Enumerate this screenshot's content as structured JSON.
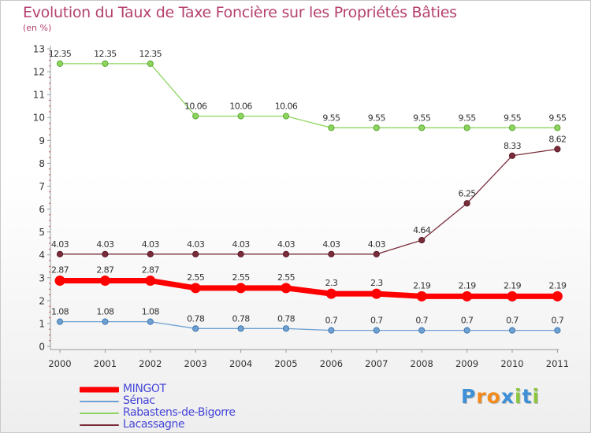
{
  "chart_data": {
    "type": "line",
    "title": "Evolution du Taux de Taxe Foncière sur les Propriétés Bâties",
    "ylabel": "(en %)",
    "x": [
      "2000",
      "2001",
      "2002",
      "2003",
      "2004",
      "2005",
      "2006",
      "2007",
      "2008",
      "2009",
      "2010",
      "2011"
    ],
    "ylim": [
      0,
      13
    ],
    "yticks": [
      0,
      1,
      2,
      3,
      4,
      5,
      6,
      7,
      8,
      9,
      10,
      11,
      12,
      13
    ],
    "series": [
      {
        "name": "MINGOT",
        "color": "#ff0000",
        "values": [
          2.87,
          2.87,
          2.87,
          2.55,
          2.55,
          2.55,
          2.3,
          2.3,
          2.19,
          2.19,
          2.19,
          2.19
        ],
        "labels": [
          "2.87",
          "2.87",
          "2.87",
          "2.55",
          "2.55",
          "2.55",
          "2.3",
          "2.3",
          "2.19",
          "2.19",
          "2.19",
          "2.19"
        ]
      },
      {
        "name": "Sénac",
        "color": "#6ea0d2",
        "values": [
          1.08,
          1.08,
          1.08,
          0.78,
          0.78,
          0.78,
          0.7,
          0.7,
          0.7,
          0.7,
          0.7,
          0.7
        ],
        "labels": [
          "1.08",
          "1.08",
          "1.08",
          "0.78",
          "0.78",
          "0.78",
          "0.7",
          "0.7",
          "0.7",
          "0.7",
          "0.7",
          "0.7"
        ]
      },
      {
        "name": "Rabastens-de-Bigorre",
        "color": "#8ed460",
        "values": [
          12.35,
          12.35,
          12.35,
          10.06,
          10.06,
          10.06,
          9.55,
          9.55,
          9.55,
          9.55,
          9.55,
          9.55
        ],
        "labels": [
          "12.35",
          "12.35",
          "12.35",
          "10.06",
          "10.06",
          "10.06",
          "9.55",
          "9.55",
          "9.55",
          "9.55",
          "9.55",
          "9.55"
        ]
      },
      {
        "name": "Lacassagne",
        "color": "#7a2c3a",
        "values": [
          4.03,
          4.03,
          4.03,
          4.03,
          4.03,
          4.03,
          4.03,
          4.03,
          4.64,
          6.25,
          8.33,
          8.62
        ],
        "labels": [
          "4.03",
          "4.03",
          "4.03",
          "4.03",
          "4.03",
          "4.03",
          "4.03",
          "4.03",
          "4.64",
          "6.25",
          "8.33",
          "8.62"
        ]
      }
    ]
  },
  "logo": {
    "letters": [
      {
        "ch": "P",
        "color": "#3d8fd6"
      },
      {
        "ch": "r",
        "color": "#f28a1c"
      },
      {
        "ch": "o",
        "color": "#f28a1c"
      },
      {
        "ch": "x",
        "color": "#3d8fd6"
      },
      {
        "ch": "i",
        "color": "#8cc63f"
      },
      {
        "ch": "t",
        "color": "#3d8fd6"
      },
      {
        "ch": "i",
        "color": "#8cc63f"
      }
    ]
  }
}
